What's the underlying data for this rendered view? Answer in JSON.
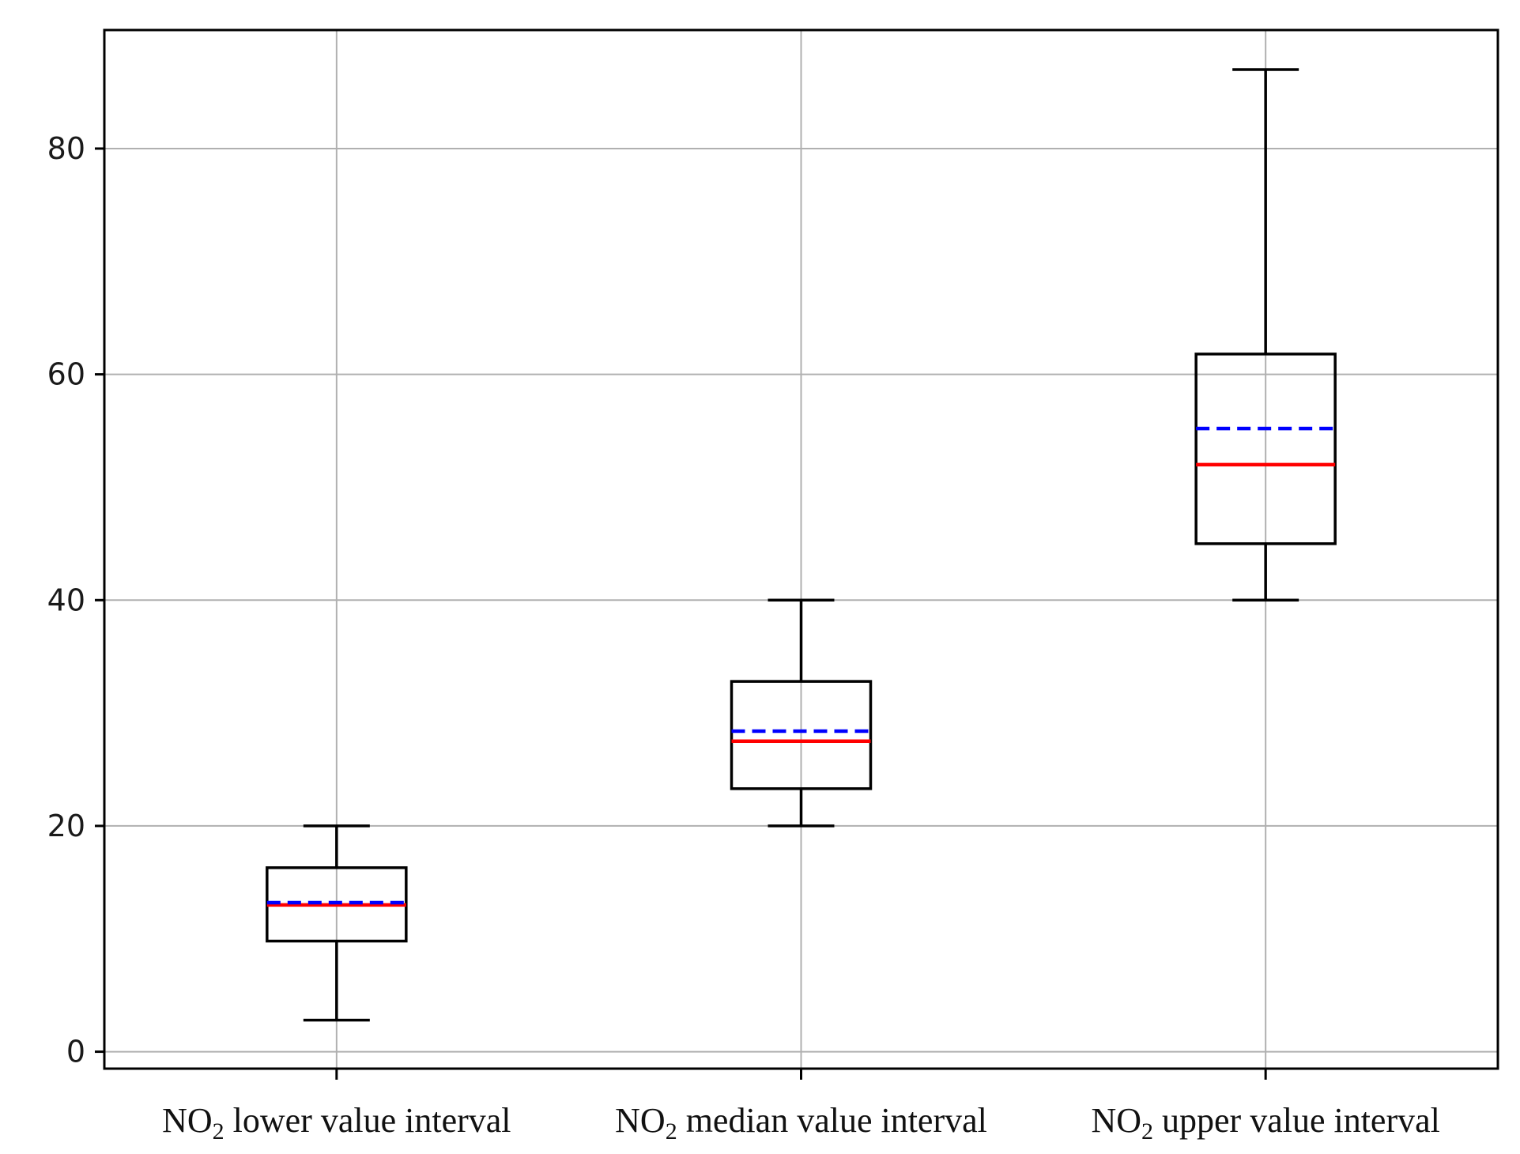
{
  "chart_data": {
    "type": "box",
    "title": "",
    "xlabel": "",
    "ylabel": "",
    "ylim": [
      -1.5,
      90.5
    ],
    "yticks": [
      0,
      20,
      40,
      60,
      80
    ],
    "grid": true,
    "categories": [
      {
        "prefix": "NO",
        "subscript": "2",
        "suffix": " lower value interval"
      },
      {
        "prefix": "NO",
        "subscript": "2",
        "suffix": " median value interval"
      },
      {
        "prefix": "NO",
        "subscript": "2",
        "suffix": " upper value interval"
      }
    ],
    "boxes": [
      {
        "whisker_low": 2.8,
        "q1": 9.8,
        "median": 13.0,
        "mean": 13.2,
        "q3": 16.3,
        "whisker_high": 20.0
      },
      {
        "whisker_low": 20.0,
        "q1": 23.3,
        "median": 27.5,
        "mean": 28.4,
        "q3": 32.8,
        "whisker_high": 40.0
      },
      {
        "whisker_low": 40.0,
        "q1": 45.0,
        "median": 52.0,
        "mean": 55.2,
        "q3": 61.8,
        "whisker_high": 87.0
      }
    ],
    "colors": {
      "box": "#000000",
      "median": "#ff0000",
      "mean": "#0000ff",
      "grid": "#b0b0b0"
    }
  }
}
